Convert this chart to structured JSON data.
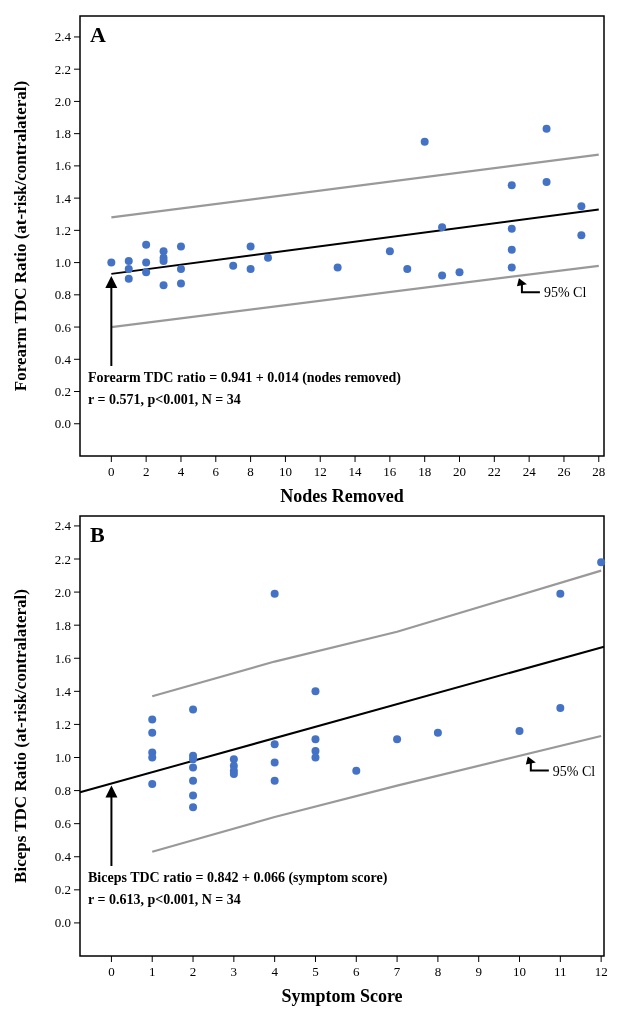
{
  "chart_data": [
    {
      "type": "scatter",
      "xlabel": "Nodes Removed",
      "ylabel": "Forearm TDC Ratio (at-risk/contralateral)",
      "grid": false,
      "xlim": [
        -1.8,
        28.3
      ],
      "ylim": [
        -0.2,
        2.53
      ],
      "xticks": [
        0,
        2,
        4,
        6,
        8,
        10,
        12,
        14,
        16,
        18,
        20,
        22,
        24,
        26,
        28
      ],
      "yticks": [
        {
          "value": 0,
          "label": "0.0"
        },
        {
          "value": 0.2,
          "label": "0.2"
        },
        {
          "value": 0.4,
          "label": "0.4"
        },
        {
          "value": 0.6,
          "label": "0.6"
        },
        {
          "value": 0.8,
          "label": "0.8"
        },
        {
          "value": 1,
          "label": "1.0"
        },
        {
          "value": 1.2,
          "label": "1.2"
        },
        {
          "value": 1.4,
          "label": "1.4"
        },
        {
          "value": 1.6,
          "label": "1.6"
        },
        {
          "value": 1.8,
          "label": "1.8"
        },
        {
          "value": 2,
          "label": "2.0"
        },
        {
          "value": 2.2,
          "label": "2.2"
        },
        {
          "value": 2.4,
          "label": "2.4"
        }
      ],
      "series": [
        {
          "type": "scatter",
          "color": "#4472c4",
          "x": [
            0,
            1,
            1,
            1,
            2,
            2,
            2,
            3,
            3,
            3,
            3,
            4,
            4,
            4,
            7,
            8,
            8,
            9,
            13,
            16,
            17,
            18,
            19,
            19,
            20,
            23,
            23,
            23,
            23,
            25,
            25,
            27,
            27
          ],
          "values": [
            1.0,
            1.01,
            0.96,
            0.9,
            1.11,
            1.0,
            0.94,
            1.07,
            1.03,
            1.01,
            0.86,
            1.1,
            0.96,
            0.87,
            0.98,
            1.1,
            0.96,
            1.03,
            0.97,
            1.07,
            0.96,
            1.75,
            1.22,
            0.92,
            0.94,
            1.48,
            1.21,
            1.08,
            0.97,
            1.83,
            1.5,
            1.35,
            1.17
          ]
        },
        {
          "type": "line",
          "color": "#000000",
          "x": [
            0,
            28
          ],
          "values": [
            0.93,
            1.33
          ]
        },
        {
          "type": "line",
          "color": "#999999",
          "x": [
            0,
            28
          ],
          "values": [
            1.28,
            1.67
          ]
        },
        {
          "type": "line",
          "color": "#999999",
          "x": [
            0,
            28
          ],
          "values": [
            0.6,
            0.98
          ]
        }
      ],
      "annotations": [
        "A",
        "Forearm TDC ratio = 0.941 + 0.014 (nodes removed)",
        "r = 0.571, p<0.001, N = 34",
        "95% Cl"
      ]
    },
    {
      "type": "scatter",
      "xlabel": "Symptom Score",
      "ylabel": "Biceps TDC Ratio (at-risk/contralateral)",
      "grid": false,
      "xlim": [
        -0.77,
        12.07
      ],
      "ylim": [
        -0.2,
        2.46
      ],
      "xticks": [
        0,
        1,
        2,
        3,
        4,
        5,
        6,
        7,
        8,
        9,
        10,
        11,
        12
      ],
      "yticks": [
        {
          "value": 0,
          "label": "0.0"
        },
        {
          "value": 0.2,
          "label": "0.2"
        },
        {
          "value": 0.4,
          "label": "0.4"
        },
        {
          "value": 0.6,
          "label": "0.6"
        },
        {
          "value": 0.8,
          "label": "0.8"
        },
        {
          "value": 1,
          "label": "1.0"
        },
        {
          "value": 1.2,
          "label": "1.2"
        },
        {
          "value": 1.4,
          "label": "1.4"
        },
        {
          "value": 1.6,
          "label": "1.6"
        },
        {
          "value": 1.8,
          "label": "1.8"
        },
        {
          "value": 2,
          "label": "2.0"
        },
        {
          "value": 2.2,
          "label": "2.2"
        },
        {
          "value": 2.4,
          "label": "2.4"
        }
      ],
      "series": [
        {
          "type": "scatter",
          "color": "#4472c4",
          "x": [
            1,
            1,
            1,
            1,
            1,
            2,
            2,
            2,
            2,
            2,
            2,
            2,
            3,
            3,
            3,
            3,
            4,
            4,
            4,
            4,
            5,
            5,
            5,
            5,
            6,
            7,
            8,
            10,
            11,
            11,
            12
          ],
          "values": [
            1.23,
            1.15,
            1.03,
            1.0,
            0.84,
            1.29,
            1.01,
            0.99,
            0.94,
            0.86,
            0.77,
            0.7,
            0.99,
            0.95,
            0.92,
            0.9,
            1.99,
            1.08,
            0.97,
            0.86,
            1.4,
            1.11,
            1.04,
            1.0,
            0.92,
            1.11,
            1.15,
            1.16,
            1.99,
            1.3,
            2.18
          ]
        },
        {
          "type": "line",
          "color": "#000000",
          "x": [
            -0.77,
            12.07
          ],
          "values": [
            0.79,
            1.67
          ]
        },
        {
          "type": "line",
          "color": "#999999",
          "x": [
            1,
            4,
            7,
            12
          ],
          "values": [
            1.37,
            1.58,
            1.76,
            2.13
          ]
        },
        {
          "type": "line",
          "color": "#999999",
          "x": [
            1,
            4,
            7,
            12
          ],
          "values": [
            0.43,
            0.64,
            0.83,
            1.13
          ]
        }
      ],
      "annotations": [
        "B",
        "Biceps TDC ratio = 0.842 + 0.066 (symptom score)",
        "r = 0.613, p<0.001, N = 34",
        "95% Cl"
      ]
    }
  ]
}
